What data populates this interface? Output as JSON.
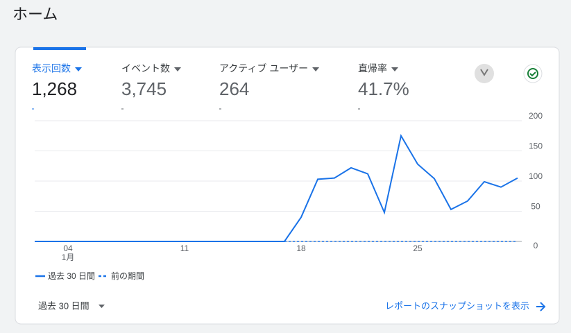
{
  "header": {
    "title": "ホーム"
  },
  "metrics": [
    {
      "label": "表示回数",
      "value": "1,268"
    },
    {
      "label": "イベント数",
      "value": "3,745"
    },
    {
      "label": "アクティブ ユーザー",
      "value": "264"
    },
    {
      "label": "直帰率",
      "value": "41.7%"
    }
  ],
  "chart_data": {
    "type": "line",
    "categories": [
      null,
      null,
      "04",
      null,
      null,
      null,
      null,
      null,
      null,
      "11",
      null,
      null,
      null,
      null,
      null,
      null,
      "18",
      null,
      null,
      null,
      null,
      null,
      null,
      "25",
      null,
      null,
      null,
      null,
      null,
      null
    ],
    "month_label": "1月",
    "series": [
      {
        "name": "過去 30 日間",
        "color": "#1a73e8",
        "values": [
          0,
          0,
          0,
          0,
          0,
          0,
          0,
          0,
          0,
          0,
          0,
          0,
          0,
          0,
          0,
          0,
          40,
          103,
          105,
          122,
          112,
          48,
          175,
          128,
          104,
          53,
          67,
          99,
          90,
          105
        ]
      },
      {
        "name": "前の期間",
        "color": "#1a73e8",
        "dashed": true,
        "values": [
          0,
          0,
          0,
          0,
          0,
          0,
          0,
          0,
          0,
          0,
          0,
          0,
          0,
          0,
          0,
          0,
          0,
          0,
          0,
          0,
          0,
          0,
          0,
          0,
          0,
          0,
          0,
          0,
          0,
          0
        ]
      }
    ],
    "ylim": [
      0,
      200
    ],
    "yticks": [
      0,
      50,
      100,
      150,
      200
    ],
    "grid": true
  },
  "footer": {
    "period": "過去 30 日間",
    "link": "レポートのスナップショットを表示"
  }
}
